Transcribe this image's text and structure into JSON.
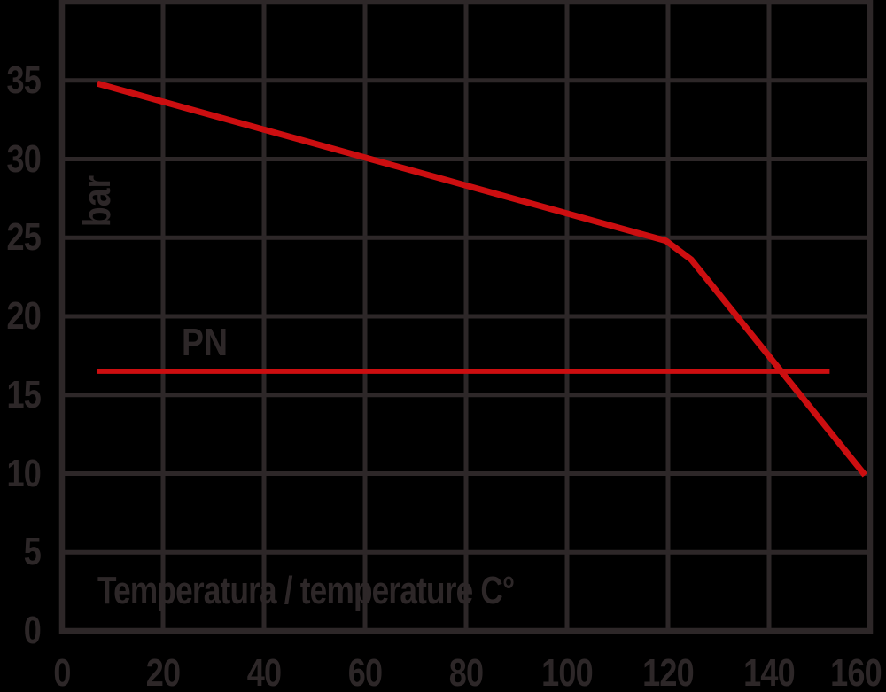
{
  "chart_data": {
    "type": "line",
    "title": "",
    "xlabel": "Temperatura / temperature C°",
    "ylabel": "bar",
    "xlim": [
      0,
      160
    ],
    "ylim": [
      0,
      40
    ],
    "x_ticks": [
      0,
      20,
      40,
      60,
      80,
      100,
      120,
      140,
      160
    ],
    "y_ticks": [
      0,
      5,
      10,
      15,
      20,
      25,
      30,
      35
    ],
    "grid": true,
    "legend_position": "none",
    "series": [
      {
        "name": "pressure-temperature-limit-curve",
        "color": "#cc0e10",
        "points": [
          [
            7,
            34.8
          ],
          [
            119.6,
            24.8
          ],
          [
            124.6,
            23.6
          ],
          [
            159,
            9.9
          ]
        ]
      },
      {
        "name": "nominal-pressure-line",
        "label": "PN",
        "color": "#cc0e10",
        "points": [
          [
            7,
            16.5
          ],
          [
            152,
            16.5
          ]
        ]
      }
    ],
    "annotations": [
      {
        "id": "pn-label",
        "text": "PN"
      }
    ]
  },
  "colors": {
    "background": "#000000",
    "grid": "#2d2728",
    "text": "#2d2728",
    "line": "#cc0e10"
  }
}
